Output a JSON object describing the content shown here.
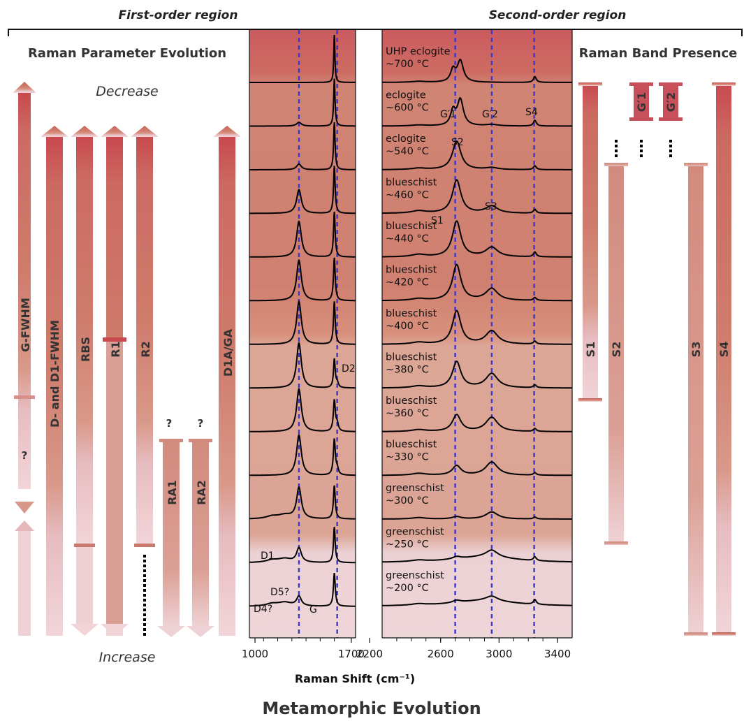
{
  "colors": {
    "band_red": "#cc5a5e",
    "band_mid": "#d08674",
    "band_tan": "#dba393",
    "band_pink": "#edcfd4",
    "arrow_top": "#c8484e",
    "arrow_mid": "#cf7f6e",
    "arrow_bottom": "#f1d3d8",
    "dash_line": "#3c36c9",
    "spectrum": "#000000"
  },
  "figure": {
    "region_first": "First-order region",
    "region_second": "Second-order region",
    "left_heading": "Raman Parameter Evolution",
    "right_heading": "Raman Band Presence",
    "decrease_label": "Decrease",
    "increase_label": "Increase",
    "x_axis_title": "Raman Shift (cm⁻¹)",
    "bottom_title": "Metamorphic Evolution",
    "first_ticks": [
      "1000",
      "1700"
    ],
    "second_ticks": [
      "2200",
      "2600",
      "3000",
      "3400"
    ]
  },
  "params": [
    {
      "label": "G-FWHM",
      "question": "?"
    },
    {
      "label": "D- and D1-FWHM"
    },
    {
      "label": "RBS"
    },
    {
      "label": "R1"
    },
    {
      "label": "R2"
    },
    {
      "label": "RA1",
      "question": "?"
    },
    {
      "label": "RA2",
      "question": "?"
    },
    {
      "label": "D1A/GA"
    }
  ],
  "bands": [
    {
      "label": "S1"
    },
    {
      "label": "S2"
    },
    {
      "label": "G′1"
    },
    {
      "label": "G′2"
    },
    {
      "label": "S3"
    },
    {
      "label": "S4"
    }
  ],
  "chart_data": {
    "type": "line",
    "title": "",
    "xlabel": "Raman Shift (cm⁻¹)",
    "x_ranges": [
      [
        1000,
        1750
      ],
      [
        2200,
        3500
      ]
    ],
    "reference_lines_cm": [
      1350,
      1620,
      2700,
      2950,
      3240
    ],
    "peak_labels_first_order": [
      {
        "name": "D1",
        "x": 1350
      },
      {
        "name": "G",
        "x": 1600
      },
      {
        "name": "D2",
        "x": 1620
      },
      {
        "name": "D4?",
        "x": 1150
      },
      {
        "name": "D5?",
        "x": 1260
      }
    ],
    "peak_labels_second_order": [
      {
        "name": "S1",
        "x": 2450
      },
      {
        "name": "S2",
        "x": 2710
      },
      {
        "name": "S3",
        "x": 2950
      },
      {
        "name": "S4",
        "x": 3240
      },
      {
        "name": "G′1",
        "x": 2690
      },
      {
        "name": "G′2",
        "x": 2730
      }
    ],
    "series": [
      {
        "label": "UHP eclogite\n~700 °C",
        "first": {
          "D": 0.0,
          "G": 1.0,
          "Gw": 10,
          "D2": 0.0
        },
        "second": {
          "S1": 0.02,
          "S2": 0.0,
          "G1": 0.25,
          "G2": 0.45,
          "S3": 0.0,
          "S4": 0.12
        }
      },
      {
        "label": "eclogite\n~600 °C",
        "first": {
          "D": 0.08,
          "G": 1.0,
          "Gw": 12,
          "D2": 0.0
        },
        "second": {
          "S1": 0.02,
          "S2": 0.0,
          "G1": 0.3,
          "G2": 0.55,
          "S3": 0.03,
          "S4": 0.12
        }
      },
      {
        "label": "eclogite\n~540 °C",
        "first": {
          "D": 0.12,
          "G": 1.0,
          "Gw": 13,
          "D2": 0.0
        },
        "second": {
          "S1": 0.03,
          "S2": 0.6,
          "G1": 0.0,
          "G2": 0.0,
          "S3": 0.04,
          "S4": 0.08
        }
      },
      {
        "label": "blueschist\n~460 °C",
        "first": {
          "D": 0.5,
          "G": 1.0,
          "Gw": 14,
          "D2": 0.0
        },
        "second": {
          "S1": 0.05,
          "S2": 0.7,
          "G1": 0.0,
          "G2": 0.0,
          "S3": 0.15,
          "S4": 0.08
        }
      },
      {
        "label": "blueschist\n~440 °C",
        "first": {
          "D": 0.75,
          "G": 0.95,
          "Gw": 14,
          "D2": 0.0
        },
        "second": {
          "S1": 0.05,
          "S2": 0.75,
          "G1": 0.0,
          "G2": 0.0,
          "S3": 0.2,
          "S4": 0.1
        }
      },
      {
        "label": "blueschist\n~420 °C",
        "first": {
          "D": 0.85,
          "G": 0.9,
          "Gw": 15,
          "D2": 0.0
        },
        "second": {
          "S1": 0.04,
          "S2": 0.75,
          "G1": 0.0,
          "G2": 0.0,
          "S3": 0.25,
          "S4": 0.06
        }
      },
      {
        "label": "blueschist\n~400 °C",
        "first": {
          "D": 0.9,
          "G": 0.9,
          "Gw": 15,
          "D2": 0.0
        },
        "second": {
          "S1": 0.04,
          "S2": 0.7,
          "G1": 0.0,
          "G2": 0.0,
          "S3": 0.28,
          "S4": 0.06
        }
      },
      {
        "label": "blueschist\n~380 °C",
        "first": {
          "D": 0.95,
          "G": 0.6,
          "Gw": 15,
          "D2": 0.1
        },
        "second": {
          "S1": 0.04,
          "S2": 0.55,
          "G1": 0.0,
          "G2": 0.0,
          "S3": 0.3,
          "S4": 0.06
        }
      },
      {
        "label": "blueschist\n~360 °C",
        "first": {
          "D": 0.9,
          "G": 0.65,
          "Gw": 17,
          "D2": 0.15
        },
        "second": {
          "S1": 0.04,
          "S2": 0.35,
          "G1": 0.0,
          "G2": 0.0,
          "S3": 0.3,
          "S4": 0.06
        }
      },
      {
        "label": "blueschist\n~330 °C",
        "first": {
          "D": 0.85,
          "G": 0.75,
          "Gw": 17,
          "D2": 0.12
        },
        "second": {
          "S1": 0.04,
          "S2": 0.2,
          "G1": 0.0,
          "G2": 0.0,
          "S3": 0.28,
          "S4": 0.05
        }
      },
      {
        "label": "greenschist\n~300 °C",
        "first": {
          "D": 0.65,
          "G": 0.7,
          "Gw": 16,
          "D2": 0.0
        },
        "second": {
          "S1": 0.03,
          "S2": 0.05,
          "G1": 0.0,
          "G2": 0.0,
          "S3": 0.15,
          "S4": 0.04
        }
      },
      {
        "label": "greenschist\n~250 °C",
        "first": {
          "D": 0.3,
          "G": 0.75,
          "Gw": 15,
          "D2": 0.0
        },
        "second": {
          "S1": 0.03,
          "S2": 0.05,
          "G1": 0.0,
          "G2": 0.0,
          "S3": 0.15,
          "S4": 0.08
        }
      },
      {
        "label": "greenschist\n~200 °C",
        "first": {
          "D": 0.2,
          "G": 0.7,
          "Gw": 16,
          "D2": 0.0
        },
        "second": {
          "S1": 0.03,
          "S2": 0.05,
          "G1": 0.0,
          "G2": 0.0,
          "S3": 0.1,
          "S4": 0.1
        }
      }
    ]
  }
}
